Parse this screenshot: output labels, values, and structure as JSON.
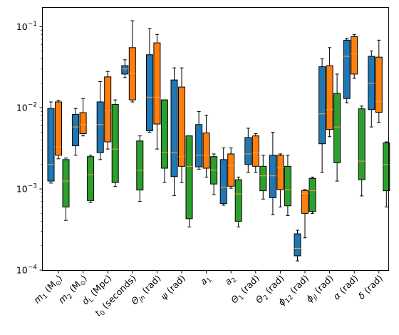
{
  "chart_data": {
    "type": "box",
    "yscale": "log",
    "ylim": [
      0.0001,
      0.17
    ],
    "y_tick_labels": [
      {
        "value": 0.0001,
        "base": "10",
        "exp": "−4"
      },
      {
        "value": 0.001,
        "base": "10",
        "exp": "−3"
      },
      {
        "value": 0.01,
        "base": "10",
        "exp": "−2"
      },
      {
        "value": 0.1,
        "base": "10",
        "exp": "−1"
      }
    ],
    "categories": [
      {
        "sym": "m",
        "sub": "1",
        "rest": " (M",
        "sub2": "⊙",
        "end": ")"
      },
      {
        "sym": "m",
        "sub": "2",
        "rest": " (M",
        "sub2": "⊙",
        "end": ")"
      },
      {
        "sym": "d",
        "sub": "L",
        "rest": " (Mpc)",
        "sub2": "",
        "end": ""
      },
      {
        "sym": "t",
        "sub": "0",
        "rest": " (seconds)",
        "sub2": "",
        "end": ""
      },
      {
        "sym": "Θ",
        "sub": "jn",
        "rest": " (rad)",
        "sub2": "",
        "end": ""
      },
      {
        "sym": "ψ",
        "sub": "",
        "rest": " (rad)",
        "sub2": "",
        "end": ""
      },
      {
        "sym": "a",
        "sub": "1",
        "rest": "",
        "sub2": "",
        "end": ""
      },
      {
        "sym": "a",
        "sub": "2",
        "rest": "",
        "sub2": "",
        "end": ""
      },
      {
        "sym": "Θ",
        "sub": "1",
        "rest": " (rad)",
        "sub2": "",
        "end": ""
      },
      {
        "sym": "Θ",
        "sub": "2",
        "rest": " (rad)",
        "sub2": "",
        "end": ""
      },
      {
        "sym": "ϕ",
        "sub": "12",
        "rest": " (rad)",
        "sub2": "",
        "end": ""
      },
      {
        "sym": "ϕ",
        "sub": "jl",
        "rest": " (rad)",
        "sub2": "",
        "end": ""
      },
      {
        "sym": "α",
        "sub": "",
        "rest": " (rad)",
        "sub2": "",
        "end": ""
      },
      {
        "sym": "δ",
        "sub": "",
        "rest": " (rad)",
        "sub2": "",
        "end": ""
      }
    ],
    "series": [
      {
        "color": "#1f77b4",
        "boxes": [
          {
            "lo": 0.00118,
            "q1": 0.00125,
            "med": 0.002,
            "q3": 0.0098,
            "hi": 0.0118
          },
          {
            "lo": 0.0026,
            "q1": 0.0034,
            "med": 0.0058,
            "q3": 0.0083,
            "hi": 0.0098
          },
          {
            "lo": 0.0023,
            "q1": 0.0028,
            "med": 0.0062,
            "q3": 0.0118,
            "hi": 0.021
          },
          {
            "lo": 0.0235,
            "q1": 0.026,
            "med": 0.03,
            "q3": 0.033,
            "hi": 0.039
          },
          {
            "lo": 0.005,
            "q1": 0.0052,
            "med": 0.0135,
            "q3": 0.045,
            "hi": 0.095
          },
          {
            "lo": 0.00083,
            "q1": 0.00142,
            "med": 0.0028,
            "q3": 0.022,
            "hi": 0.031
          },
          {
            "lo": 0.00175,
            "q1": 0.00187,
            "med": 0.0026,
            "q3": 0.0062,
            "hi": 0.009
          },
          {
            "lo": 0.00063,
            "q1": 0.00066,
            "med": 0.00105,
            "q3": 0.0023,
            "hi": 0.0032
          },
          {
            "lo": 0.0016,
            "q1": 0.002,
            "med": 0.0027,
            "q3": 0.0043,
            "hi": 0.0056
          },
          {
            "lo": 0.00048,
            "q1": 0.00078,
            "med": 0.00145,
            "q3": 0.0026,
            "hi": 0.005
          },
          {
            "lo": 0.00013,
            "q1": 0.00015,
            "med": 0.000185,
            "q3": 0.00028,
            "hi": 0.00031
          },
          {
            "lo": 0.0016,
            "q1": 0.0036,
            "med": 0.0084,
            "q3": 0.032,
            "hi": 0.04
          },
          {
            "lo": 0.0115,
            "q1": 0.013,
            "med": 0.043,
            "q3": 0.068,
            "hi": 0.072
          },
          {
            "lo": 0.0058,
            "q1": 0.0095,
            "med": 0.02,
            "q3": 0.043,
            "hi": 0.05
          }
        ]
      },
      {
        "color": "#ff7f0e",
        "boxes": [
          {
            "lo": 0.00235,
            "q1": 0.0026,
            "med": 0.0033,
            "q3": 0.0118,
            "hi": 0.0124
          },
          {
            "lo": 0.0045,
            "q1": 0.0048,
            "med": 0.0062,
            "q3": 0.0087,
            "hi": 0.013
          },
          {
            "lo": 0.0031,
            "q1": 0.0038,
            "med": 0.0092,
            "q3": 0.024,
            "hi": 0.028
          },
          {
            "lo": 0.0118,
            "q1": 0.0125,
            "med": 0.0265,
            "q3": 0.055,
            "hi": 0.118
          },
          {
            "lo": 0.0031,
            "q1": 0.0063,
            "med": 0.0135,
            "q3": 0.063,
            "hi": 0.08
          },
          {
            "lo": 0.0012,
            "q1": 0.0019,
            "med": 0.0025,
            "q3": 0.018,
            "hi": 0.031
          },
          {
            "lo": 0.0014,
            "q1": 0.0018,
            "med": 0.0026,
            "q3": 0.0049,
            "hi": 0.0081
          },
          {
            "lo": 0.00102,
            "q1": 0.00108,
            "med": 0.00195,
            "q3": 0.0027,
            "hi": 0.0032
          },
          {
            "lo": 0.0016,
            "q1": 0.0019,
            "med": 0.0028,
            "q3": 0.0045,
            "hi": 0.0048
          },
          {
            "lo": 0.0006,
            "q1": 0.00098,
            "med": 0.00185,
            "q3": 0.0026,
            "hi": 0.0027
          },
          {
            "lo": 0.00025,
            "q1": 0.0005,
            "med": 0.00088,
            "q3": 0.00096,
            "hi": 0.00098
          },
          {
            "lo": 0.0044,
            "q1": 0.0054,
            "med": 0.0095,
            "q3": 0.033,
            "hi": 0.055
          },
          {
            "lo": 0.023,
            "q1": 0.026,
            "med": 0.046,
            "q3": 0.075,
            "hi": 0.08
          },
          {
            "lo": 0.0066,
            "q1": 0.0088,
            "med": 0.012,
            "q3": 0.042,
            "hi": 0.068
          }
        ]
      },
      {
        "color": "#2ca02c",
        "boxes": [
          {
            "lo": 0.00041,
            "q1": 0.0006,
            "med": 0.00125,
            "q3": 0.0023,
            "hi": 0.0024
          },
          {
            "lo": 0.00068,
            "q1": 0.00072,
            "med": 0.0015,
            "q3": 0.0025,
            "hi": 0.0026
          },
          {
            "lo": 0.00107,
            "q1": 0.0012,
            "med": 0.0031,
            "q3": 0.011,
            "hi": 0.0125
          },
          {
            "lo": 0.0007,
            "q1": 0.00097,
            "med": 0.0017,
            "q3": 0.0039,
            "hi": 0.0045
          },
          {
            "lo": 0.0012,
            "q1": 0.0018,
            "med": 0.0028,
            "q3": 0.0125,
            "hi": 0.0125
          },
          {
            "lo": 0.00034,
            "q1": 0.00043,
            "med": 0.0019,
            "q3": 0.0045,
            "hi": 0.0045
          },
          {
            "lo": 0.00085,
            "q1": 0.00115,
            "med": 0.0017,
            "q3": 0.0025,
            "hi": 0.0027
          },
          {
            "lo": 0.00034,
            "q1": 0.0004,
            "med": 0.00087,
            "q3": 0.0013,
            "hi": 0.0014
          },
          {
            "lo": 0.00075,
            "q1": 0.00095,
            "med": 0.00145,
            "q3": 0.0019,
            "hi": 0.0026
          },
          {
            "lo": 0.00047,
            "q1": 0.00062,
            "med": 0.00098,
            "q3": 0.0019,
            "hi": 0.0026
          },
          {
            "lo": 0.0005,
            "q1": 0.00053,
            "med": 0.00095,
            "q3": 0.00135,
            "hi": 0.0014
          },
          {
            "lo": 0.00125,
            "q1": 0.0021,
            "med": 0.0058,
            "q3": 0.015,
            "hi": 0.026
          },
          {
            "lo": 0.00082,
            "q1": 0.0013,
            "med": 0.0022,
            "q3": 0.0097,
            "hi": 0.0105
          },
          {
            "lo": 0.0006,
            "q1": 0.00095,
            "med": 0.002,
            "q3": 0.0037,
            "hi": 0.0038
          }
        ]
      }
    ],
    "median_color": "#ff9f3f",
    "grid": false,
    "legend": "none",
    "title": "",
    "xlabel": "",
    "ylabel": ""
  }
}
